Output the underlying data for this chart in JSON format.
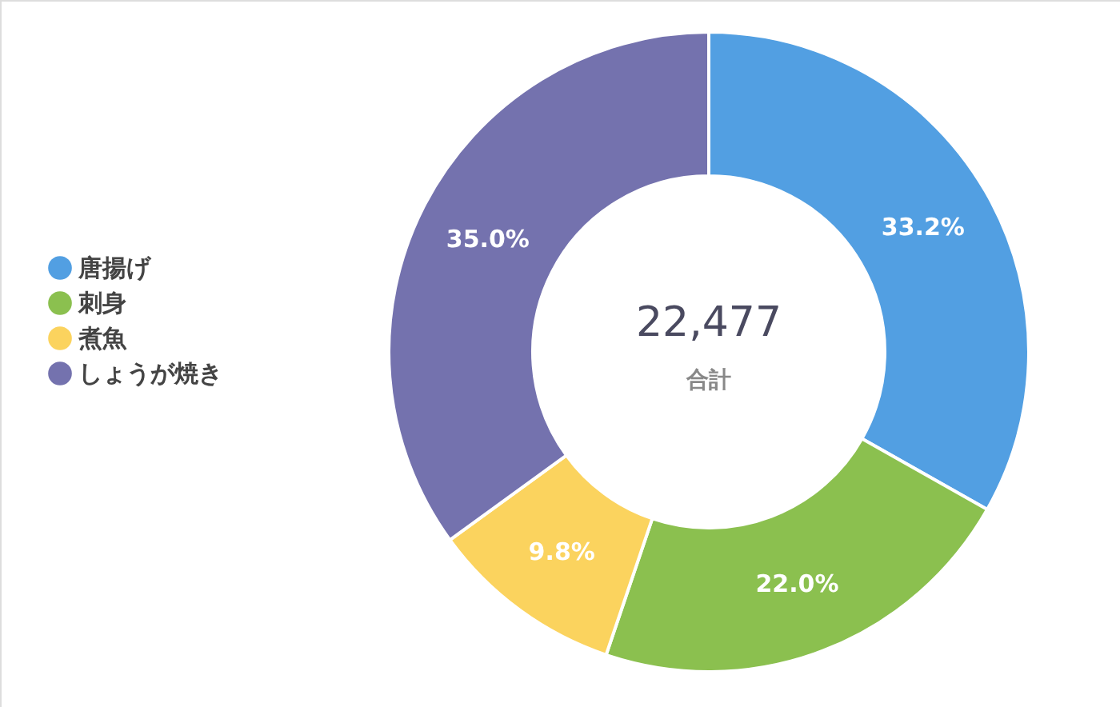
{
  "chart_data": {
    "type": "donut",
    "categories": [
      "唐揚げ",
      "刺身",
      "煮魚",
      "しょうが焼き"
    ],
    "values": [
      33.2,
      22.0,
      9.8,
      35.0
    ],
    "colors": [
      "#529fe2",
      "#8bc04f",
      "#fbd35e",
      "#7472ae"
    ],
    "value_labels": [
      "33.2%",
      "22.0%",
      "9.8%",
      "35.0%"
    ],
    "annotations": [
      "22,477",
      "合計"
    ],
    "legend": "left"
  }
}
